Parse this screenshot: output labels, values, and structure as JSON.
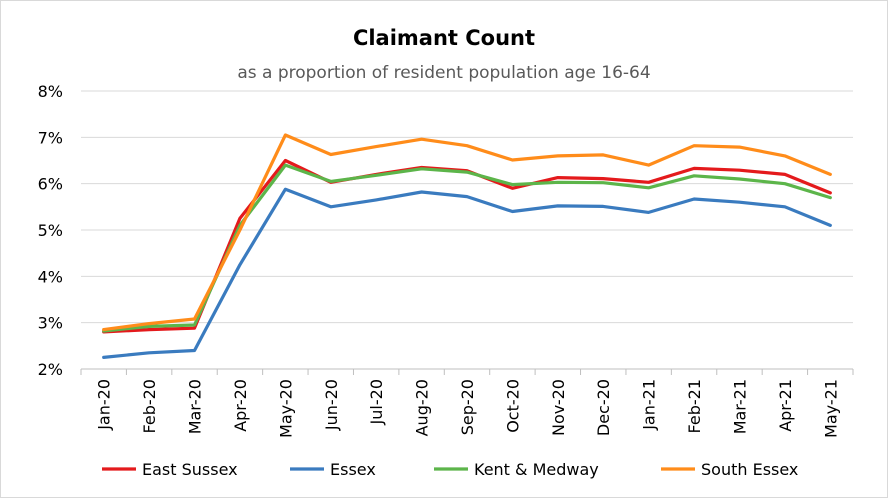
{
  "chart_data": {
    "type": "line",
    "title": "Claimant Count",
    "subtitle": "as a proportion of resident population age 16-64",
    "xlabel": "",
    "ylabel": "",
    "categories": [
      "Jan-20",
      "Feb-20",
      "Mar-20",
      "Apr-20",
      "May-20",
      "Jun-20",
      "Jul-20",
      "Aug-20",
      "Sep-20",
      "Oct-20",
      "Nov-20",
      "Dec-20",
      "Jan-21",
      "Feb-21",
      "Mar-21",
      "Apr-21",
      "May-21"
    ],
    "ylim": [
      0.02,
      0.08
    ],
    "yticks": [
      0.02,
      0.03,
      0.04,
      0.05,
      0.06,
      0.07,
      0.08
    ],
    "ytick_labels": [
      "2%",
      "3%",
      "4%",
      "5%",
      "6%",
      "7%",
      "8%"
    ],
    "grid": "horizontal",
    "legend_position": "bottom",
    "series": [
      {
        "name": "East Sussex",
        "color": "#e41a1c",
        "values": [
          0.028,
          0.0285,
          0.0288,
          0.0525,
          0.065,
          0.0603,
          0.062,
          0.0635,
          0.0628,
          0.059,
          0.0613,
          0.0611,
          0.0603,
          0.0633,
          0.0629,
          0.062,
          0.058
        ]
      },
      {
        "name": "Essex",
        "color": "#3a7bbf",
        "values": [
          0.0225,
          0.0235,
          0.024,
          0.0425,
          0.0588,
          0.055,
          0.0565,
          0.0582,
          0.0572,
          0.054,
          0.0552,
          0.0551,
          0.0538,
          0.0567,
          0.056,
          0.055,
          0.051
        ]
      },
      {
        "name": "Kent & Medway",
        "color": "#5cb54a",
        "values": [
          0.0282,
          0.0292,
          0.0295,
          0.051,
          0.064,
          0.0605,
          0.0618,
          0.0632,
          0.0625,
          0.0598,
          0.0603,
          0.0602,
          0.0591,
          0.0617,
          0.061,
          0.06,
          0.057
        ]
      },
      {
        "name": "South Essex",
        "color": "#ff8c1a",
        "values": [
          0.0285,
          0.0298,
          0.0308,
          0.05,
          0.0705,
          0.0663,
          0.068,
          0.0696,
          0.0682,
          0.0651,
          0.066,
          0.0662,
          0.064,
          0.0682,
          0.0679,
          0.066,
          0.062
        ]
      }
    ]
  }
}
